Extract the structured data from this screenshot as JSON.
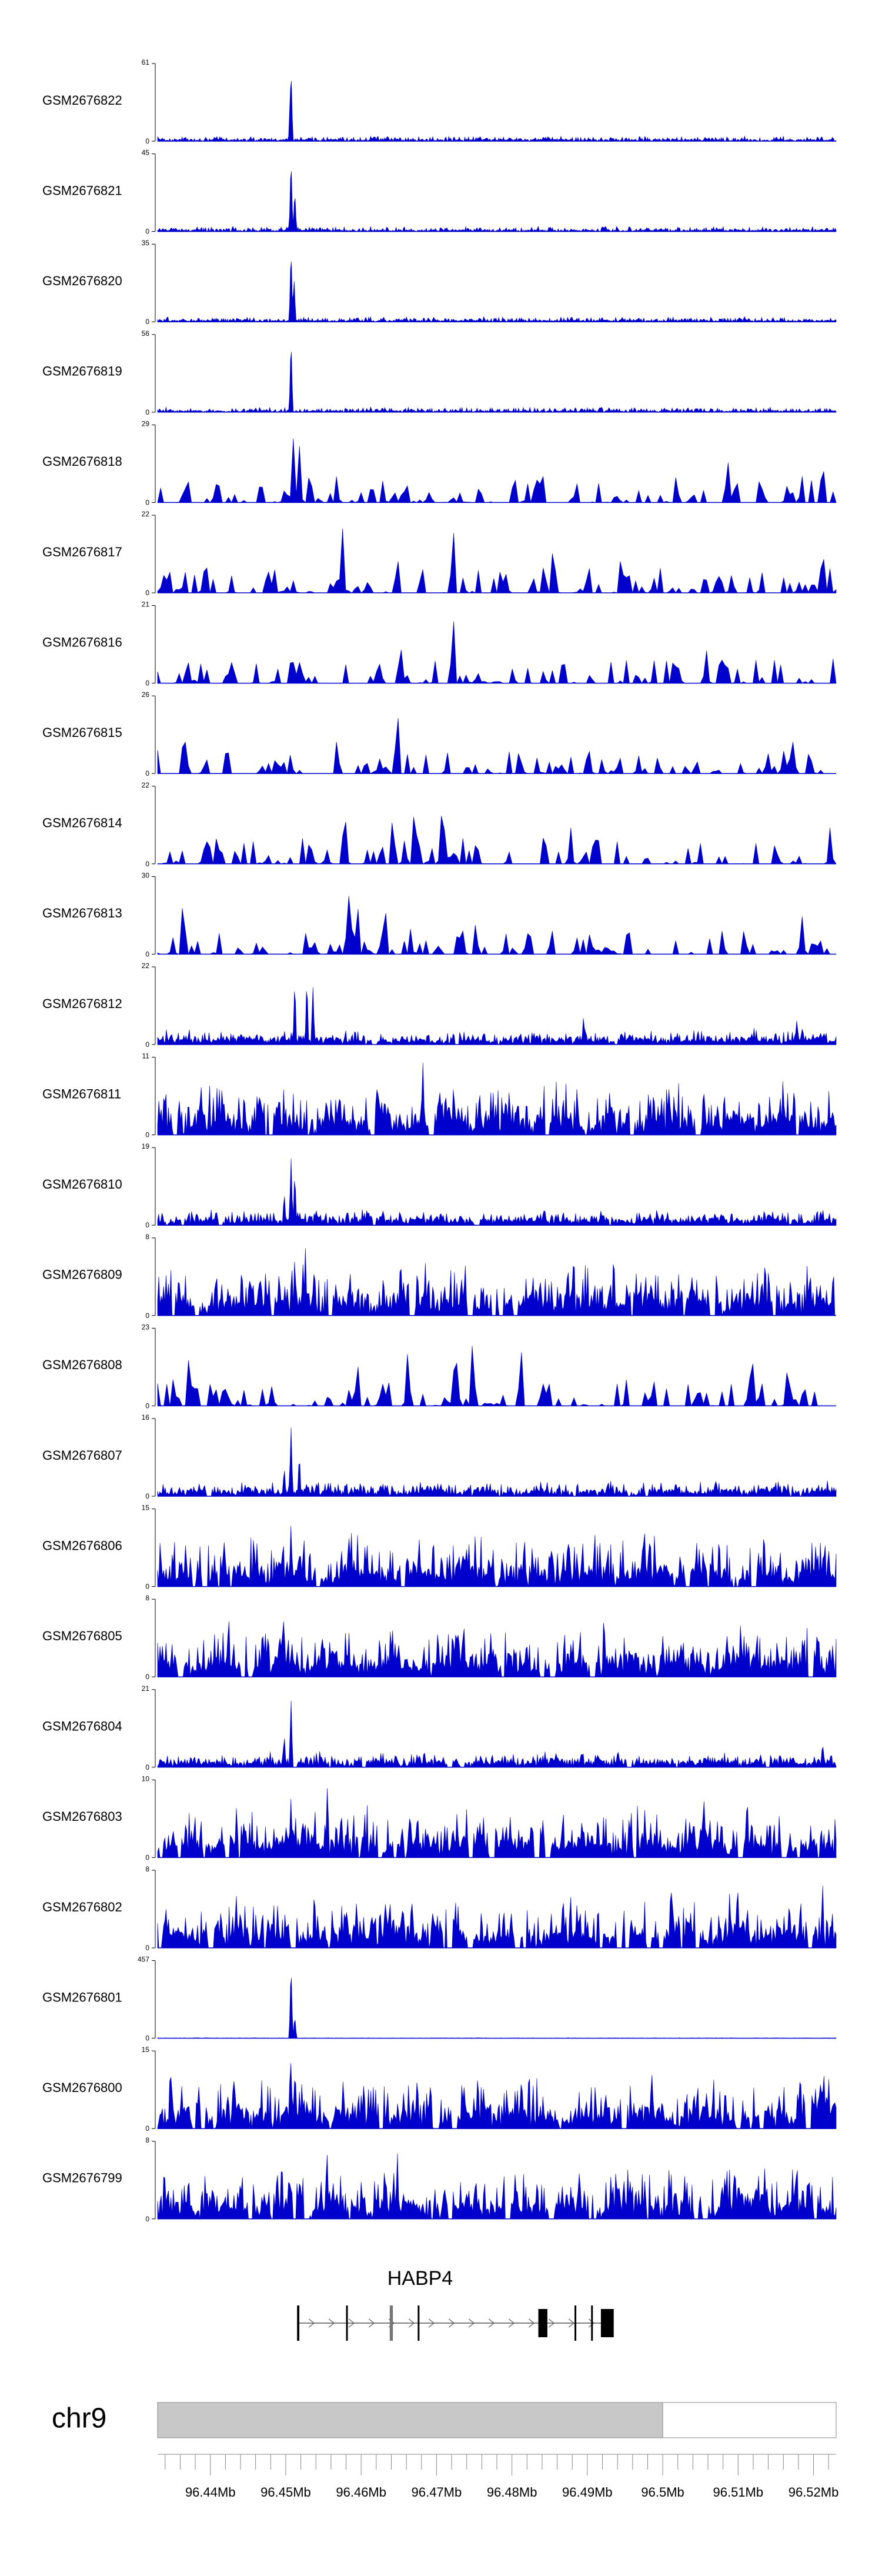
{
  "chart_data": {
    "type": "area",
    "color": "#0000CC",
    "x_range_mb": [
      96.433,
      96.523
    ],
    "tracks": [
      {
        "name": "GSM2676822",
        "ymax": 61,
        "ymin": 0,
        "pattern": "sharp",
        "peaks": [
          [
            96.4507,
            1.0
          ],
          [
            96.4506,
            0.65
          ]
        ]
      },
      {
        "name": "GSM2676821",
        "ymax": 45,
        "ymin": 0,
        "pattern": "sharp",
        "peaks": [
          [
            96.4507,
            1.0
          ],
          [
            96.4512,
            0.55
          ]
        ]
      },
      {
        "name": "GSM2676820",
        "ymax": 35,
        "ymin": 0,
        "pattern": "sharp",
        "peaks": [
          [
            96.4507,
            1.0
          ],
          [
            96.4511,
            0.6
          ]
        ]
      },
      {
        "name": "GSM2676819",
        "ymax": 56,
        "ymin": 0,
        "pattern": "sharp",
        "peaks": [
          [
            96.4507,
            1.0
          ]
        ]
      },
      {
        "name": "GSM2676818",
        "ymax": 29,
        "ymin": 0,
        "pattern": "sparse",
        "peaks": [
          [
            96.451,
            0.85
          ],
          [
            96.4518,
            0.78
          ],
          [
            96.4532,
            0.5
          ],
          [
            96.4803,
            0.45
          ],
          [
            96.4835,
            0.5
          ],
          [
            96.5018,
            0.4
          ],
          [
            96.5087,
            0.55
          ],
          [
            96.5212,
            0.65
          ]
        ]
      },
      {
        "name": "GSM2676817",
        "ymax": 22,
        "ymin": 0,
        "pattern": "sparse",
        "peaks": [
          [
            96.4575,
            0.95
          ],
          [
            96.4648,
            0.55
          ],
          [
            96.4722,
            0.95
          ],
          [
            96.4855,
            0.75
          ],
          [
            96.4945,
            0.6
          ],
          [
            96.5212,
            0.7
          ]
        ]
      },
      {
        "name": "GSM2676816",
        "ymax": 21,
        "ymin": 0,
        "pattern": "sparse",
        "peaks": [
          [
            96.4508,
            0.5
          ],
          [
            96.4652,
            0.6
          ],
          [
            96.4722,
            0.98
          ],
          [
            96.4868,
            0.45
          ],
          [
            96.5015,
            0.45
          ],
          [
            96.5058,
            0.45
          ]
        ]
      },
      {
        "name": "GSM2676815",
        "ymax": 26,
        "ymin": 0,
        "pattern": "sparse",
        "peaks": [
          [
            96.4365,
            0.7
          ],
          [
            96.4568,
            0.5
          ],
          [
            96.4648,
            0.97
          ],
          [
            96.5172,
            0.5
          ]
        ]
      },
      {
        "name": "GSM2676814",
        "ymax": 22,
        "ymin": 0,
        "pattern": "sparse",
        "peaks": [
          [
            96.4578,
            0.85
          ],
          [
            96.4642,
            0.72
          ],
          [
            96.4671,
            0.92
          ],
          [
            96.4708,
            1.0
          ],
          [
            96.4878,
            0.5
          ],
          [
            96.5222,
            0.5
          ]
        ]
      },
      {
        "name": "GSM2676813",
        "ymax": 30,
        "ymin": 0,
        "pattern": "sparse",
        "peaks": [
          [
            96.4364,
            0.85
          ],
          [
            96.4583,
            0.9
          ],
          [
            96.4595,
            0.75
          ],
          [
            96.4632,
            0.65
          ],
          [
            96.4752,
            0.45
          ],
          [
            96.5185,
            0.5
          ]
        ]
      },
      {
        "name": "GSM2676812",
        "ymax": 22,
        "ymin": 0,
        "pattern": "medium",
        "peaks": [
          [
            96.4512,
            0.9
          ],
          [
            96.4528,
            0.92
          ],
          [
            96.4536,
            0.8
          ],
          [
            96.4895,
            0.4
          ],
          [
            96.5178,
            0.35
          ]
        ]
      },
      {
        "name": "GSM2676811",
        "ymax": 11,
        "ymin": 0,
        "pattern": "dense",
        "peaks": [
          [
            96.4682,
            0.97
          ],
          [
            96.4705,
            0.65
          ],
          [
            96.4775,
            0.6
          ],
          [
            96.4792,
            0.6
          ],
          [
            96.4925,
            0.55
          ],
          [
            96.5142,
            0.6
          ]
        ]
      },
      {
        "name": "GSM2676810",
        "ymax": 19,
        "ymin": 0,
        "pattern": "medium",
        "peaks": [
          [
            96.4507,
            0.92
          ],
          [
            96.4512,
            0.75
          ],
          [
            96.4498,
            0.45
          ]
        ]
      },
      {
        "name": "GSM2676809",
        "ymax": 8,
        "ymin": 0,
        "pattern": "dense",
        "peaks": [
          [
            96.4512,
            0.85
          ],
          [
            96.4526,
            0.92
          ],
          [
            96.4538,
            0.75
          ],
          [
            96.4685,
            0.75
          ],
          [
            96.4935,
            0.95
          ],
          [
            96.4965,
            0.6
          ]
        ]
      },
      {
        "name": "GSM2676808",
        "ymax": 23,
        "ymin": 0,
        "pattern": "sparse",
        "peaks": [
          [
            96.4372,
            0.8
          ],
          [
            96.4595,
            0.65
          ],
          [
            96.4662,
            0.8
          ],
          [
            96.4725,
            0.95
          ],
          [
            96.4748,
            0.95
          ],
          [
            96.4812,
            0.85
          ],
          [
            96.5118,
            0.85
          ],
          [
            96.5166,
            0.65
          ]
        ]
      },
      {
        "name": "GSM2676807",
        "ymax": 16,
        "ymin": 0,
        "pattern": "medium",
        "peaks": [
          [
            96.4507,
            0.95
          ],
          [
            96.4518,
            0.6
          ],
          [
            96.4498,
            0.4
          ]
        ]
      },
      {
        "name": "GSM2676806",
        "ymax": 15,
        "ymin": 0,
        "pattern": "dense",
        "peaks": [
          [
            96.4507,
            0.88
          ],
          [
            96.4524,
            0.75
          ],
          [
            96.4532,
            0.55
          ],
          [
            96.4695,
            0.55
          ],
          [
            96.5075,
            0.55
          ],
          [
            96.5135,
            0.6
          ]
        ]
      },
      {
        "name": "GSM2676805",
        "ymax": 8,
        "ymin": 0,
        "pattern": "dense",
        "peaks": [
          [
            96.4495,
            0.7
          ],
          [
            96.4548,
            0.65
          ],
          [
            96.4922,
            0.93
          ],
          [
            96.4725,
            0.65
          ],
          [
            96.5125,
            0.7
          ]
        ]
      },
      {
        "name": "GSM2676804",
        "ymax": 21,
        "ymin": 0,
        "pattern": "medium",
        "peaks": [
          [
            96.4507,
            0.92
          ],
          [
            96.4498,
            0.45
          ],
          [
            96.5212,
            0.35
          ]
        ]
      },
      {
        "name": "GSM2676803",
        "ymax": 10,
        "ymin": 0,
        "pattern": "dense",
        "peaks": [
          [
            96.4507,
            0.85
          ],
          [
            96.4555,
            0.92
          ],
          [
            96.4665,
            0.7
          ],
          [
            96.4958,
            0.7
          ],
          [
            96.5112,
            0.92
          ]
        ]
      },
      {
        "name": "GSM2676802",
        "ymax": 8,
        "ymin": 0,
        "pattern": "dense",
        "peaks": [
          [
            96.4538,
            0.88
          ],
          [
            96.4638,
            0.75
          ],
          [
            96.4725,
            0.7
          ],
          [
            96.5012,
            0.95
          ],
          [
            96.5168,
            0.72
          ],
          [
            96.5212,
            0.95
          ]
        ]
      },
      {
        "name": "GSM2676801",
        "ymax": 457,
        "ymin": 0,
        "pattern": "single",
        "peaks": [
          [
            96.4507,
            1.0
          ],
          [
            96.4512,
            0.3
          ]
        ]
      },
      {
        "name": "GSM2676800",
        "ymax": 15,
        "ymin": 0,
        "pattern": "dense",
        "peaks": [
          [
            96.4507,
            0.95
          ],
          [
            96.4512,
            0.75
          ],
          [
            96.4635,
            0.55
          ],
          [
            96.5214,
            0.72
          ]
        ]
      },
      {
        "name": "GSM2676799",
        "ymax": 8,
        "ymin": 0,
        "pattern": "dense",
        "peaks": [
          [
            96.4555,
            0.85
          ],
          [
            96.4648,
            0.95
          ],
          [
            96.4752,
            0.65
          ],
          [
            96.4938,
            0.75
          ],
          [
            96.5096,
            0.7
          ],
          [
            96.5135,
            0.72
          ]
        ]
      }
    ],
    "gene": {
      "name": "HABP4",
      "start_mb": 96.4515,
      "end_mb": 96.4935,
      "strand": "+",
      "exons": [
        [
          96.4515,
          96.4518
        ],
        [
          96.458,
          96.4582
        ],
        [
          96.4638,
          96.4642
        ],
        [
          96.4675,
          96.4677
        ],
        [
          96.4835,
          96.4847
        ],
        [
          96.4883,
          96.4885
        ],
        [
          96.4905,
          96.4907
        ],
        [
          96.4918,
          96.4935
        ]
      ]
    },
    "chromosome": {
      "name": "chr9",
      "cytoband_filled_to_mb": 96.5
    },
    "x_ticks": [
      96.44,
      96.45,
      96.46,
      96.47,
      96.48,
      96.49,
      96.5,
      96.51,
      96.52
    ],
    "x_tick_labels": [
      "96.44Mb",
      "96.45Mb",
      "96.46Mb",
      "96.47Mb",
      "96.48Mb",
      "96.49Mb",
      "96.5Mb",
      "96.51Mb",
      "96.52Mb"
    ],
    "minor_tick_step_mb": 0.002
  }
}
